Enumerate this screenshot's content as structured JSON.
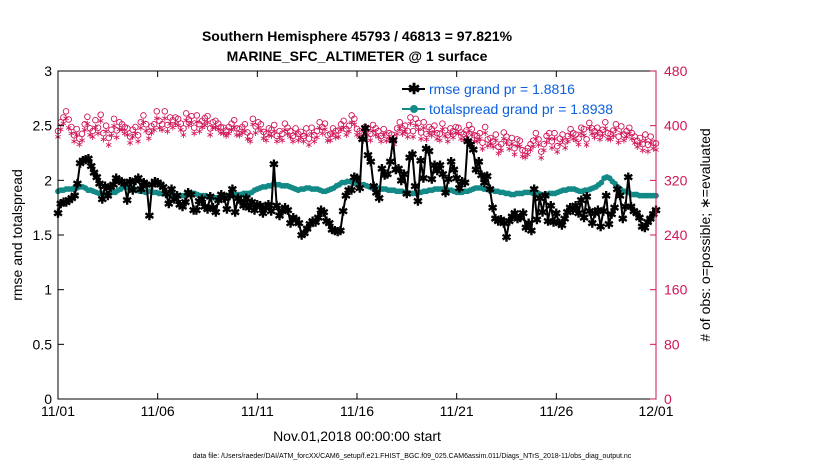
{
  "chart_data": {
    "type": "line",
    "title": "Southern Hemisphere 45793 / 46813 = 97.821%",
    "subtitle": "MARINE_SFC_ALTIMETER @ 1 surface",
    "xlabel": "Nov.01,2018 00:00:00 start",
    "ylabel": "rmse and totalspread",
    "y2label": "# of obs: o=possible; ∗=evaluated",
    "footnote": "data file: /Users/raeder/DAI/ATM_forcXX/CAM6_setup/f.e21.FHIST_BGC.f09_025.CAM6assim.011/Diags_NTrS_2018-11/obs_diag_output.nc",
    "xlim": [
      0,
      30
    ],
    "ylim": [
      0,
      3
    ],
    "y2lim": [
      0,
      480
    ],
    "x_ticks": [
      0,
      5,
      10,
      15,
      20,
      25,
      30
    ],
    "x_tick_labels": [
      "11/01",
      "11/06",
      "11/11",
      "11/16",
      "11/21",
      "11/26",
      "12/01"
    ],
    "y_ticks": [
      0,
      0.5,
      1,
      1.5,
      2,
      2.5,
      3
    ],
    "y_tick_labels": [
      "0",
      "0.5",
      "1",
      "1.5",
      "2",
      "2.5",
      "3"
    ],
    "y2_ticks": [
      0,
      80,
      160,
      240,
      320,
      400,
      480
    ],
    "y2_tick_labels": [
      "0",
      "80",
      "160",
      "240",
      "320",
      "400",
      "480"
    ],
    "grid": false,
    "legend_position": "top-right",
    "colors": {
      "rmse": "#000000",
      "totalspread": "#138a87",
      "obs": "#d1165a",
      "legend_text": "#0b5fe0"
    },
    "series": [
      {
        "name": "rmse grand pr = 1.8816",
        "axis": "left",
        "marker": "star",
        "values": [
          1.7,
          1.79,
          1.8,
          1.8,
          1.82,
          1.84,
          1.86,
          1.97,
          2.16,
          2.18,
          2.19,
          2.2,
          2.13,
          2.07,
          2.03,
          1.97,
          1.83,
          1.95,
          1.86,
          1.94,
          1.96,
          2.02,
          2.0,
          1.99,
          1.97,
          1.82,
          1.99,
          1.91,
          2.0,
          2.02,
          1.92,
          1.98,
          1.96,
          1.68,
          1.96,
          1.99,
          1.98,
          1.96,
          1.94,
          1.88,
          1.79,
          1.92,
          1.83,
          1.86,
          1.78,
          1.76,
          1.8,
          1.89,
          1.87,
          1.73,
          1.73,
          1.81,
          1.83,
          1.76,
          1.74,
          1.85,
          1.75,
          1.71,
          1.82,
          1.87,
          1.84,
          1.74,
          1.86,
          1.92,
          1.71,
          1.84,
          1.81,
          1.77,
          1.84,
          1.75,
          1.8,
          1.73,
          1.78,
          1.77,
          1.7,
          1.75,
          1.78,
          1.72,
          2.15,
          1.77,
          1.68,
          1.72,
          1.75,
          1.73,
          1.61,
          1.66,
          1.64,
          1.61,
          1.5,
          1.52,
          1.56,
          1.6,
          1.63,
          1.62,
          1.66,
          1.73,
          1.71,
          1.63,
          1.61,
          1.55,
          1.54,
          1.53,
          1.54,
          1.72,
          1.86,
          1.91,
          1.91,
          2.03,
          2.02,
          1.93,
          2.38,
          2.48,
          2.23,
          2.17,
          1.95,
          1.89,
          1.84,
          2.11,
          2.05,
          2.06,
          2.17,
          2.37,
          2.1,
          2.11,
          2.0,
          2.06,
          1.88,
          2.21,
          2.24,
          1.95,
          1.81,
          2.18,
          2.02,
          2.29,
          2.27,
          2.01,
          2.14,
          2.09,
          2.14,
          2.06,
          1.89,
          2.01,
          2.17,
          2.1,
          2.02,
          1.93,
          1.99,
          1.98,
          2.36,
          2.33,
          2.28,
          2.1,
          2.17,
          2.05,
          1.98,
          2.04,
          1.92,
          1.75,
          1.65,
          1.63,
          1.64,
          1.61,
          1.48,
          1.63,
          1.67,
          1.7,
          1.65,
          1.66,
          1.7,
          1.57,
          1.61,
          1.54,
          1.92,
          1.64,
          1.84,
          1.71,
          1.86,
          1.63,
          1.77,
          1.62,
          1.7,
          1.61,
          1.59,
          1.65,
          1.71,
          1.75,
          1.73,
          1.77,
          1.7,
          1.82,
          1.66,
          1.85,
          1.72,
          1.61,
          1.7,
          1.73,
          1.58,
          1.72,
          1.86,
          1.6,
          1.69,
          1.75,
          1.92,
          1.86,
          1.65,
          1.76,
          2.03,
          1.76,
          1.72,
          1.7,
          1.66,
          1.58,
          1.57,
          1.62,
          1.65,
          1.69,
          1.73
        ]
      },
      {
        "name": "totalspread grand pr = 1.8938",
        "axis": "left",
        "marker": "circle",
        "values": [
          1.9,
          1.91,
          1.91,
          1.92,
          1.92,
          1.92,
          1.93,
          1.93,
          1.94,
          1.94,
          1.93,
          1.91,
          1.91,
          1.9,
          1.89,
          1.88,
          1.88,
          1.87,
          1.87,
          1.88,
          1.89,
          1.89,
          1.91,
          1.92,
          1.94,
          1.94,
          1.93,
          1.92,
          1.92,
          1.91,
          1.9,
          1.9,
          1.89,
          1.9,
          1.9,
          1.89,
          1.89,
          1.88,
          1.88,
          1.88,
          1.87,
          1.87,
          1.87,
          1.86,
          1.86,
          1.86,
          1.86,
          1.87,
          1.88,
          1.88,
          1.88,
          1.87,
          1.86,
          1.86,
          1.86,
          1.85,
          1.85,
          1.84,
          1.84,
          1.84,
          1.85,
          1.85,
          1.85,
          1.86,
          1.86,
          1.87,
          1.87,
          1.87,
          1.88,
          1.88,
          1.88,
          1.89,
          1.91,
          1.92,
          1.93,
          1.94,
          1.94,
          1.95,
          1.95,
          1.97,
          1.96,
          1.96,
          1.95,
          1.95,
          1.95,
          1.94,
          1.93,
          1.92,
          1.91,
          1.92,
          1.92,
          1.93,
          1.93,
          1.92,
          1.92,
          1.92,
          1.91,
          1.9,
          1.9,
          1.91,
          1.92,
          1.93,
          1.95,
          1.96,
          1.98,
          1.98,
          1.99,
          1.99,
          1.98,
          1.97,
          1.96,
          1.96,
          1.96,
          1.95,
          1.94,
          1.93,
          1.93,
          1.93,
          1.92,
          1.92,
          1.92,
          1.91,
          1.91,
          1.91,
          1.9,
          1.9,
          1.9,
          1.89,
          1.89,
          1.88,
          1.88,
          1.88,
          1.89,
          1.89,
          1.9,
          1.9,
          1.91,
          1.91,
          1.92,
          1.92,
          1.92,
          1.92,
          1.91,
          1.91,
          1.91,
          1.9,
          1.89,
          1.89,
          1.89,
          1.9,
          1.9,
          1.91,
          1.92,
          1.93,
          1.93,
          1.93,
          1.92,
          1.92,
          1.91,
          1.91,
          1.9,
          1.9,
          1.89,
          1.89,
          1.88,
          1.88,
          1.87,
          1.87,
          1.88,
          1.88,
          1.88,
          1.89,
          1.89,
          1.89,
          1.88,
          1.88,
          1.88,
          1.87,
          1.87,
          1.87,
          1.88,
          1.88,
          1.88,
          1.89,
          1.9,
          1.91,
          1.91,
          1.92,
          1.92,
          1.92,
          1.91,
          1.9,
          1.9,
          1.91,
          1.91,
          1.92,
          1.93,
          1.94,
          1.96,
          1.98,
          2.02,
          2.03,
          2.02,
          1.99,
          1.97,
          1.94,
          1.92,
          1.9,
          1.9,
          1.89,
          1.87,
          1.87,
          1.87,
          1.86,
          1.86,
          1.86,
          1.86,
          1.86,
          1.86,
          1.86
        ]
      },
      {
        "name": "# of obs possible",
        "axis": "right",
        "marker": "circle-open",
        "values": [
          392,
          405,
          412,
          421,
          409,
          398,
          386,
          395,
          381,
          388,
          402,
          413,
          396,
          392,
          408,
          397,
          416,
          389,
          400,
          382,
          394,
          410,
          393,
          405,
          402,
          398,
          396,
          384,
          394,
          398,
          386,
          405,
          415,
          402,
          391,
          399,
          402,
          421,
          407,
          402,
          421,
          401,
          412,
          408,
          412,
          410,
          403,
          396,
          418,
          409,
          414,
          397,
          415,
          402,
          407,
          411,
          414,
          396,
          405,
          407,
          403,
          398,
          397,
          393,
          398,
          403,
          408,
          396,
          395,
          398,
          402,
          390,
          385,
          410,
          399,
          405,
          402,
          391,
          388,
          396,
          394,
          401,
          385,
          392,
          388,
          403,
          397,
          392,
          385,
          396,
          388,
          391,
          385,
          396,
          381,
          397,
          386,
          392,
          405,
          398,
          403,
          386,
          388,
          396,
          392,
          393,
          402,
          407,
          395,
          400,
          415,
          410,
          395,
          392,
          389,
          398,
          396,
          388,
          401,
          396,
          392,
          385,
          395,
          386,
          389,
          387,
          382,
          396,
          405,
          396,
          400,
          392,
          412,
          392,
          410,
          404,
          390,
          405,
          388,
          398,
          395,
          400,
          389,
          388,
          403,
          393,
          386,
          396,
          392,
          398,
          397,
          390,
          388,
          393,
          401,
          395,
          386,
          385,
          389,
          375,
          398,
          380,
          382,
          377,
          387,
          369,
          373,
          390,
          384,
          375,
          382,
          367,
          380,
          378,
          364,
          363,
          367,
          373,
          378,
          389,
          380,
          362,
          373,
          385,
          389,
          377,
          389,
          370,
          381,
          387,
          377,
          385,
          395,
          389,
          387,
          381,
          397,
          395,
          380,
          404,
          396,
          392,
          397,
          389,
          394,
          405,
          389,
          388,
          393,
          402,
          384,
          399,
          387,
          392,
          397,
          389,
          384,
          378,
          382,
          373,
          387,
          372,
          384,
          375,
          374
        ]
      },
      {
        "name": "# of obs evaluated",
        "axis": "right",
        "marker": "asterisk",
        "values": [
          385,
          396,
          405,
          412,
          398,
          390,
          378,
          388,
          374,
          380,
          395,
          404,
          388,
          385,
          399,
          390,
          408,
          381,
          393,
          373,
          387,
          401,
          384,
          396,
          395,
          390,
          388,
          376,
          385,
          390,
          378,
          398,
          406,
          394,
          383,
          391,
          395,
          412,
          398,
          395,
          412,
          393,
          404,
          399,
          404,
          402,
          395,
          388,
          409,
          402,
          406,
          390,
          407,
          393,
          399,
          402,
          406,
          388,
          398,
          399,
          396,
          391,
          390,
          386,
          390,
          395,
          399,
          388,
          387,
          391,
          394,
          382,
          378,
          403,
          391,
          398,
          394,
          383,
          380,
          388,
          386,
          393,
          378,
          384,
          380,
          395,
          389,
          385,
          378,
          389,
          380,
          384,
          378,
          388,
          373,
          390,
          378,
          384,
          398,
          390,
          396,
          379,
          380,
          389,
          384,
          385,
          395,
          399,
          388,
          393,
          406,
          403,
          388,
          384,
          381,
          391,
          388,
          380,
          394,
          388,
          385,
          378,
          388,
          379,
          381,
          379,
          374,
          389,
          397,
          389,
          393,
          385,
          405,
          385,
          402,
          396,
          382,
          398,
          381,
          391,
          387,
          392,
          382,
          380,
          396,
          386,
          378,
          389,
          384,
          391,
          390,
          382,
          380,
          386,
          394,
          388,
          378,
          378,
          382,
          367,
          391,
          372,
          375,
          370,
          380,
          361,
          365,
          382,
          376,
          367,
          375,
          359,
          372,
          371,
          356,
          355,
          359,
          366,
          371,
          382,
          373,
          354,
          365,
          377,
          382,
          369,
          382,
          363,
          374,
          380,
          369,
          378,
          387,
          382,
          380,
          374,
          390,
          387,
          373,
          397,
          389,
          384,
          390,
          381,
          387,
          397,
          382,
          381,
          386,
          395,
          377,
          391,
          380,
          385,
          390,
          382,
          376,
          370,
          375,
          365,
          380,
          364,
          376,
          368,
          366
        ]
      }
    ]
  }
}
